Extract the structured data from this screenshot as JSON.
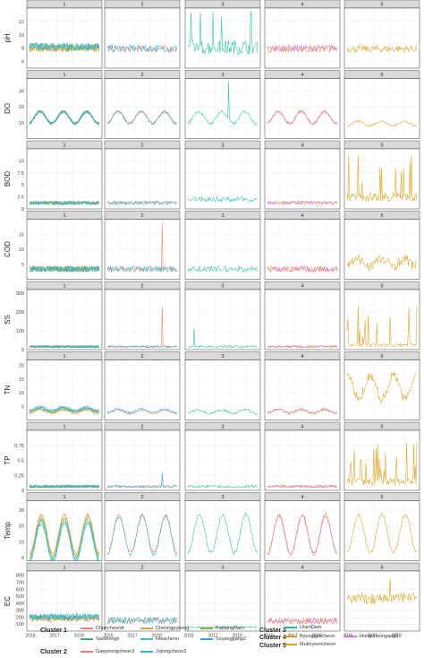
{
  "chart_data": {
    "type": "line",
    "facet_columns": [
      "1",
      "2",
      "3",
      "4",
      "5"
    ],
    "variables": [
      {
        "name": "pH",
        "ylim": [
          5,
          14
        ],
        "ticks": [
          6,
          8,
          10,
          12,
          14
        ]
      },
      {
        "name": "DO",
        "ylim": [
          0,
          38
        ],
        "ticks": [
          10,
          20,
          30
        ]
      },
      {
        "name": "BOD",
        "ylim": [
          0,
          12.5
        ],
        "ticks": [
          0.0,
          2.5,
          5.0,
          7.5,
          10.0,
          12.5
        ]
      },
      {
        "name": "COD",
        "ylim": [
          0,
          20
        ],
        "ticks": [
          5,
          10,
          15,
          20
        ]
      },
      {
        "name": "SS",
        "ylim": [
          0,
          320
        ],
        "ticks": [
          0,
          100,
          200,
          300
        ]
      },
      {
        "name": "TN",
        "ylim": [
          0,
          22
        ],
        "ticks": [
          5,
          10,
          15,
          20
        ]
      },
      {
        "name": "TP",
        "ylim": [
          0,
          1.0
        ],
        "ticks": [
          0.0,
          0.25,
          0.5,
          0.75,
          1.0
        ]
      },
      {
        "name": "Temp",
        "ylim": [
          -2,
          36
        ],
        "ticks": [
          0,
          10,
          20,
          30
        ]
      },
      {
        "name": "EC",
        "ylim": [
          0,
          860
        ],
        "ticks": [
          100,
          200,
          300,
          400,
          500,
          600,
          700,
          800
        ]
      }
    ],
    "x_ticks": [
      "2016",
      "2017",
      "2018"
    ],
    "series": [
      {
        "name": "ChuncheonA",
        "cluster": "1",
        "color": "#e58a6a"
      },
      {
        "name": "Cheongpyeong",
        "cluster": "1",
        "color": "#cfa438"
      },
      {
        "name": "PaldangDam",
        "cluster": "1",
        "color": "#8db23a"
      },
      {
        "name": "Sambongli",
        "cluster": "1",
        "color": "#3ab574"
      },
      {
        "name": "Hwacheon",
        "cluster": "1",
        "color": "#3bbcbd"
      },
      {
        "name": "Soyanggang2",
        "cluster": "1",
        "color": "#3aa6e0"
      },
      {
        "name": "Gapyeongcheon3",
        "cluster": "2",
        "color": "#f0796d"
      },
      {
        "name": "Jojongcheon3",
        "cluster": "2",
        "color": "#2cb9c9"
      },
      {
        "name": "UiamDam",
        "cluster": "3",
        "color": "#1fbf99"
      },
      {
        "name": "Byeoggyecheon",
        "cluster": "4",
        "color": "#c8a02c"
      },
      {
        "name": "Hongcheongang6",
        "cluster": "4",
        "color": "#e76bd8"
      },
      {
        "name": "Mukhyeoncheon",
        "cluster": "5",
        "color": "#d4a017"
      }
    ],
    "panel_series": {
      "1": [
        "ChuncheonA",
        "Cheongpyeong",
        "PaldangDam",
        "Sambongli",
        "Hwacheon",
        "Soyanggang2"
      ],
      "2": [
        "Gapyeongcheon3",
        "Jojongcheon3"
      ],
      "3": [
        "UiamDam"
      ],
      "4": [
        "Byeoggyecheon",
        "Hongcheongang6"
      ],
      "5": [
        "Mukhyeoncheon"
      ]
    },
    "legend_placement": "bottom",
    "grid": true
  },
  "legend": {
    "rows": [
      {
        "title": "Cluster 1",
        "items": [
          "ChuncheonA",
          "Cheongpyeong",
          "PaldangDam"
        ]
      },
      {
        "title": "",
        "items": [
          "Sambongli",
          "Hwacheon",
          "Soyanggang2"
        ]
      },
      {
        "title": "Cluster 2",
        "items": [
          "Gapyeongcheon3",
          "Jojongcheon3"
        ]
      }
    ],
    "right_rows": [
      {
        "title": "Cluster 3",
        "items": [
          "UiamDam"
        ]
      },
      {
        "title": "Cluster 4",
        "items": [
          "Byeoggyecheon",
          "Hongcheongang6"
        ]
      },
      {
        "title": "Cluster 5",
        "items": [
          "Mukhyeoncheon"
        ]
      }
    ]
  }
}
